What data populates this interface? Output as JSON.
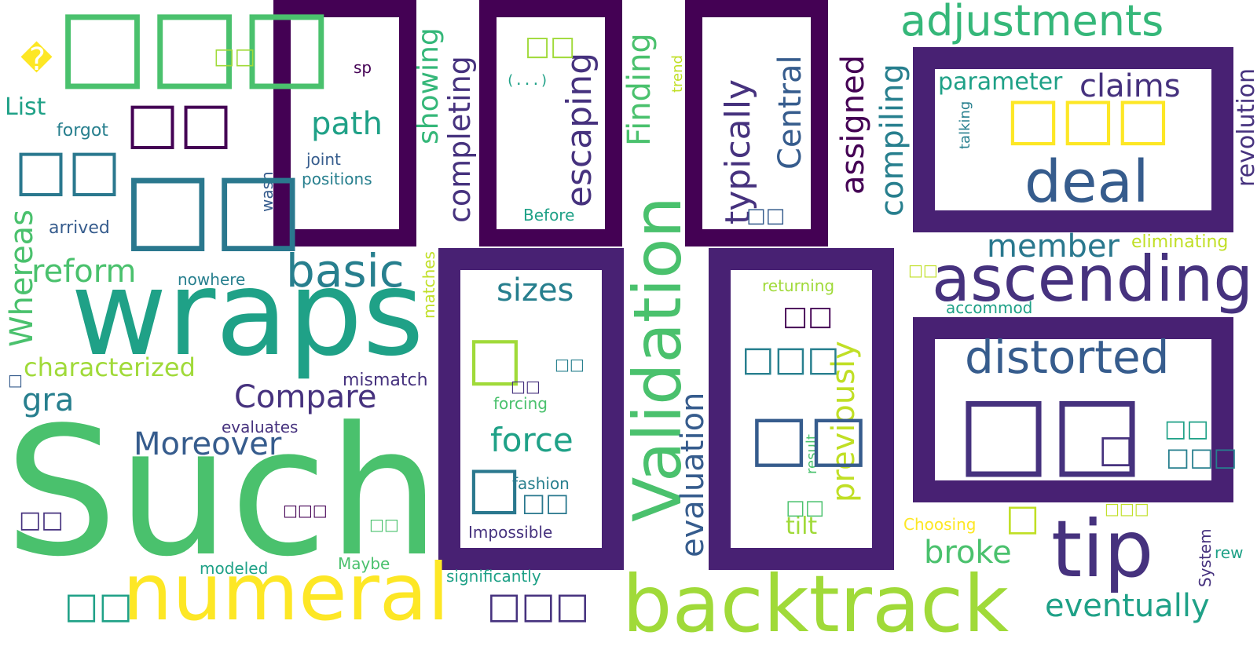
{
  "colors": {
    "frame_dark": "#440154",
    "frame_mid": "#482173",
    "yellow": "#fde725",
    "lime": "#a0da39",
    "green": "#4ac16d",
    "teal": "#1fa187",
    "cyan": "#277f8e",
    "blue": "#365c8d",
    "indigo": "#46327e"
  },
  "words": {
    "such": "Such",
    "wraps": "wraps",
    "numeral": "numeral",
    "backtrack": "backtrack",
    "validation": "Validation",
    "ascending": "ascending",
    "tip": "tip",
    "deal": "deal",
    "distorted": "distorted",
    "adjustments": "adjustments",
    "basic": "basic",
    "path": "path",
    "escaping": "escaping",
    "typically": "typically",
    "central": "Central",
    "completing": "completing",
    "showing": "showing",
    "finding": "Finding",
    "assigned": "assigned",
    "compiling": "compiling",
    "claims": "claims",
    "parameter": "parameter",
    "revolution": "revolution",
    "member": "member",
    "eliminating": "eliminating",
    "accommod": "accommod",
    "previously": "previously",
    "returning": "returning",
    "evaluation": "evaluation",
    "sizes": "sizes",
    "force": "force",
    "forcing": "forcing",
    "fashion": "fashion",
    "impossible": "Impossible",
    "significantly": "significantly",
    "compare": "Compare",
    "moreover": "Moreover",
    "reform": "reform",
    "characterized": "characterized",
    "gra": "gra",
    "whereas": "Whereas",
    "list": "List",
    "forgot": "forgot",
    "arrived": "arrived",
    "nowhere": "nowhere",
    "mismatch": "mismatch",
    "evaluates": "evaluates",
    "modeled": "modeled",
    "maybe": "Maybe",
    "matches": "matches",
    "wasn": "wasn",
    "joint": "joint",
    "positions": "positions",
    "sp": "sp",
    "ellipsis": "(...)",
    "before": "Before",
    "trend": "trend",
    "talking": "talking",
    "tilt": "tilt",
    "result": "result",
    "broke": "broke",
    "choosing": "Choosing",
    "eventually": "eventually",
    "system": "System",
    "rew": "rew",
    "replacement": "�",
    "tofu1": "□□□",
    "tofu2": "□□",
    "tofu3": "□□",
    "tofu4": "□□",
    "tofu5": "□□",
    "tofu6": "□□□",
    "tofu7": "□□",
    "tofu8": "□□",
    "tofu9": "□",
    "tofu10": "□",
    "tofu11": "□□",
    "tofu12": "□□",
    "tofu13": "□□□",
    "tofu14": "□□",
    "tofu15": "□□",
    "tofu16": "□□",
    "tofu17": "□□",
    "tofu18": "□□□",
    "tofu19": "□",
    "tofu20": "□□",
    "tofu21": "□□",
    "tofu22": "□□□",
    "tofu23": "□□",
    "tofu24": "□",
    "tofu25": "□□",
    "tofu26": "□□",
    "tofu27": "□□□",
    "tofu28": "□□",
    "tofu29": "□",
    "tofu30": "□□□",
    "tofu31": "□□"
  }
}
